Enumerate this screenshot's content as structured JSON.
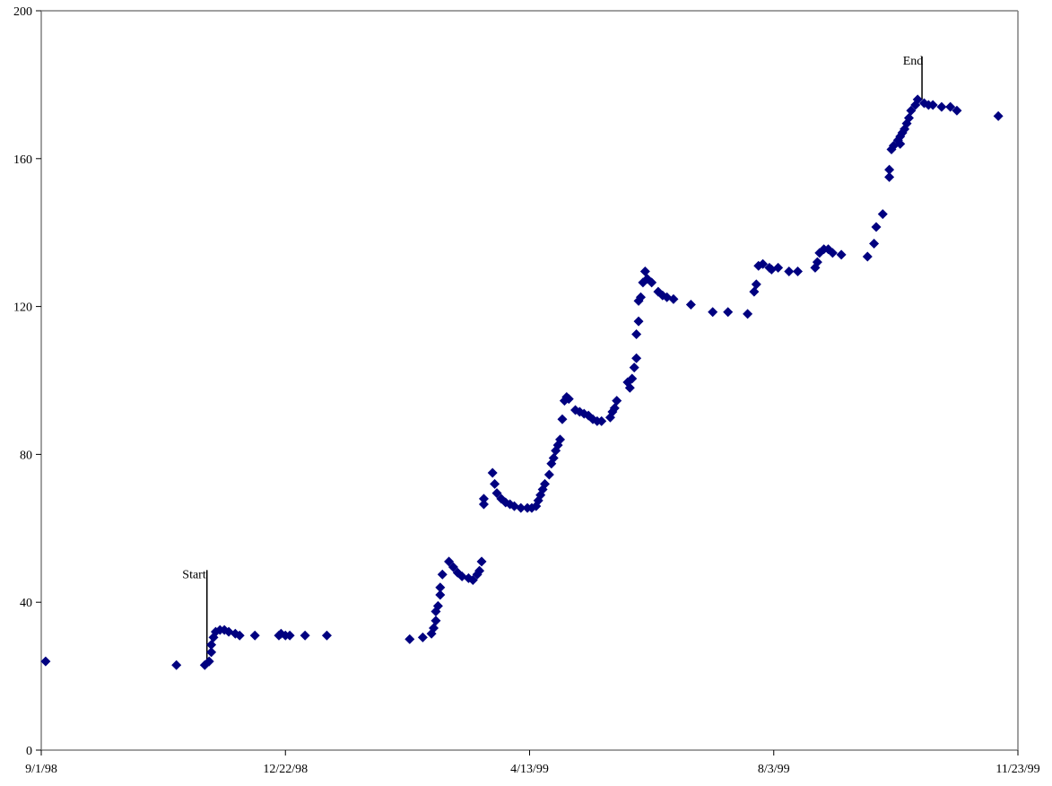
{
  "chart_data": {
    "type": "scatter",
    "title": "",
    "xlabel": "",
    "ylabel": "",
    "xlim": [
      "1998-09-01",
      "1999-11-23"
    ],
    "ylim": [
      0,
      200
    ],
    "x_ticks": [
      {
        "value": "1998-09-01",
        "label": "9/1/98"
      },
      {
        "value": "1998-12-22",
        "label": "12/22/98"
      },
      {
        "value": "1999-04-13",
        "label": "4/13/99"
      },
      {
        "value": "1999-08-03",
        "label": "8/3/99"
      },
      {
        "value": "1999-11-23",
        "label": "11/23/99"
      }
    ],
    "y_ticks": [
      {
        "value": 0,
        "label": "0"
      },
      {
        "value": 40,
        "label": "40"
      },
      {
        "value": 80,
        "label": "80"
      },
      {
        "value": 120,
        "label": "120"
      },
      {
        "value": 160,
        "label": "160"
      },
      {
        "value": 200,
        "label": "200"
      }
    ],
    "grid": false,
    "legend": "none",
    "marker": "diamond",
    "marker_color": "#000080",
    "annotations": [
      {
        "label": "Start",
        "x": "1998-11-16",
        "y": 22
      },
      {
        "label": "End",
        "x": "1999-10-10",
        "y": 175
      }
    ],
    "series": [
      {
        "points": [
          [
            "1998-09-03",
            24
          ],
          [
            "1998-11-02",
            23
          ],
          [
            "1998-11-15",
            23
          ],
          [
            "1998-11-17",
            24
          ],
          [
            "1998-11-18",
            26.5
          ],
          [
            "1998-11-18",
            28.5
          ],
          [
            "1998-11-19",
            30.5
          ],
          [
            "1998-11-20",
            32
          ],
          [
            "1998-11-22",
            32.5
          ],
          [
            "1998-11-24",
            32.5
          ],
          [
            "1998-11-26",
            32
          ],
          [
            "1998-11-29",
            31.5
          ],
          [
            "1998-12-01",
            31
          ],
          [
            "1998-12-08",
            31
          ],
          [
            "1998-12-19",
            31
          ],
          [
            "1998-12-20",
            31.5
          ],
          [
            "1998-12-22",
            31
          ],
          [
            "1998-12-24",
            31
          ],
          [
            "1998-12-31",
            31
          ],
          [
            "1999-01-10",
            31
          ],
          [
            "1999-02-17",
            30
          ],
          [
            "1999-02-23",
            30.5
          ],
          [
            "1999-02-27",
            31.5
          ],
          [
            "1999-02-28",
            33
          ],
          [
            "1999-03-01",
            35
          ],
          [
            "1999-03-01",
            37.5
          ],
          [
            "1999-03-02",
            39
          ],
          [
            "1999-03-03",
            42
          ],
          [
            "1999-03-03",
            44
          ],
          [
            "1999-03-04",
            47.5
          ],
          [
            "1999-03-07",
            51
          ],
          [
            "1999-03-09",
            49.5
          ],
          [
            "1999-03-11",
            48
          ],
          [
            "1999-03-13",
            47
          ],
          [
            "1999-03-16",
            46.5
          ],
          [
            "1999-03-18",
            46
          ],
          [
            "1999-03-20",
            47.5
          ],
          [
            "1999-03-21",
            48.5
          ],
          [
            "1999-03-22",
            51
          ],
          [
            "1999-03-23",
            66.5
          ],
          [
            "1999-03-23",
            68
          ],
          [
            "1999-03-27",
            75
          ],
          [
            "1999-03-28",
            72
          ],
          [
            "1999-03-29",
            69.5
          ],
          [
            "1999-03-31",
            68
          ],
          [
            "1999-04-02",
            67
          ],
          [
            "1999-04-04",
            66.5
          ],
          [
            "1999-04-06",
            66
          ],
          [
            "1999-04-09",
            65.5
          ],
          [
            "1999-04-12",
            65.5
          ],
          [
            "1999-04-14",
            65.5
          ],
          [
            "1999-04-16",
            66
          ],
          [
            "1999-04-17",
            67.5
          ],
          [
            "1999-04-18",
            69
          ],
          [
            "1999-04-19",
            70.5
          ],
          [
            "1999-04-20",
            72
          ],
          [
            "1999-04-22",
            74.5
          ],
          [
            "1999-04-23",
            77.5
          ],
          [
            "1999-04-24",
            79
          ],
          [
            "1999-04-25",
            81
          ],
          [
            "1999-04-26",
            82.5
          ],
          [
            "1999-04-27",
            84
          ],
          [
            "1999-04-28",
            89.5
          ],
          [
            "1999-04-29",
            94.5
          ],
          [
            "1999-04-30",
            95.5
          ],
          [
            "1999-05-01",
            95
          ],
          [
            "1999-05-04",
            92
          ],
          [
            "1999-05-06",
            91.5
          ],
          [
            "1999-05-08",
            91
          ],
          [
            "1999-05-10",
            90.5
          ],
          [
            "1999-05-12",
            89.5
          ],
          [
            "1999-05-14",
            89
          ],
          [
            "1999-05-16",
            89
          ],
          [
            "1999-05-20",
            90
          ],
          [
            "1999-05-21",
            91.5
          ],
          [
            "1999-05-22",
            92.5
          ],
          [
            "1999-05-23",
            94.5
          ],
          [
            "1999-05-28",
            99.5
          ],
          [
            "1999-05-29",
            98
          ],
          [
            "1999-05-30",
            100.5
          ],
          [
            "1999-05-31",
            103.5
          ],
          [
            "1999-06-01",
            106
          ],
          [
            "1999-06-01",
            112.5
          ],
          [
            "1999-06-02",
            116
          ],
          [
            "1999-06-02",
            121.5
          ],
          [
            "1999-06-03",
            122.5
          ],
          [
            "1999-06-04",
            126.5
          ],
          [
            "1999-06-05",
            129.5
          ],
          [
            "1999-06-06",
            127.5
          ],
          [
            "1999-06-08",
            126.5
          ],
          [
            "1999-06-11",
            124
          ],
          [
            "1999-06-13",
            123
          ],
          [
            "1999-06-15",
            122.5
          ],
          [
            "1999-06-18",
            122
          ],
          [
            "1999-06-26",
            120.5
          ],
          [
            "1999-07-06",
            118.5
          ],
          [
            "1999-07-13",
            118.5
          ],
          [
            "1999-07-22",
            118
          ],
          [
            "1999-07-25",
            124
          ],
          [
            "1999-07-26",
            126
          ],
          [
            "1999-07-27",
            131
          ],
          [
            "1999-07-29",
            131.5
          ],
          [
            "1999-08-01",
            130.5
          ],
          [
            "1999-08-02",
            130
          ],
          [
            "1999-08-05",
            130.5
          ],
          [
            "1999-08-10",
            129.5
          ],
          [
            "1999-08-14",
            129.5
          ],
          [
            "1999-08-22",
            130.5
          ],
          [
            "1999-08-23",
            132
          ],
          [
            "1999-08-24",
            134.5
          ],
          [
            "1999-08-26",
            135.5
          ],
          [
            "1999-08-28",
            135.5
          ],
          [
            "1999-08-30",
            134.5
          ],
          [
            "1999-09-03",
            134
          ],
          [
            "1999-09-15",
            133.5
          ],
          [
            "1999-09-18",
            137
          ],
          [
            "1999-09-19",
            141.5
          ],
          [
            "1999-09-22",
            145
          ],
          [
            "1999-09-25",
            155
          ],
          [
            "1999-09-25",
            157
          ],
          [
            "1999-09-26",
            162.5
          ],
          [
            "1999-09-27",
            163.5
          ],
          [
            "1999-09-29",
            165
          ],
          [
            "1999-09-30",
            164
          ],
          [
            "1999-09-30",
            166
          ],
          [
            "1999-10-01",
            167
          ],
          [
            "1999-10-02",
            168
          ],
          [
            "1999-10-03",
            169.5
          ],
          [
            "1999-10-04",
            171
          ],
          [
            "1999-10-05",
            173
          ],
          [
            "1999-10-07",
            174.5
          ],
          [
            "1999-10-08",
            176
          ],
          [
            "1999-10-11",
            175
          ],
          [
            "1999-10-13",
            174.5
          ],
          [
            "1999-10-15",
            174.5
          ],
          [
            "1999-10-19",
            174
          ],
          [
            "1999-10-23",
            174
          ],
          [
            "1999-10-26",
            173
          ],
          [
            "1999-11-14",
            171.5
          ]
        ]
      }
    ]
  }
}
